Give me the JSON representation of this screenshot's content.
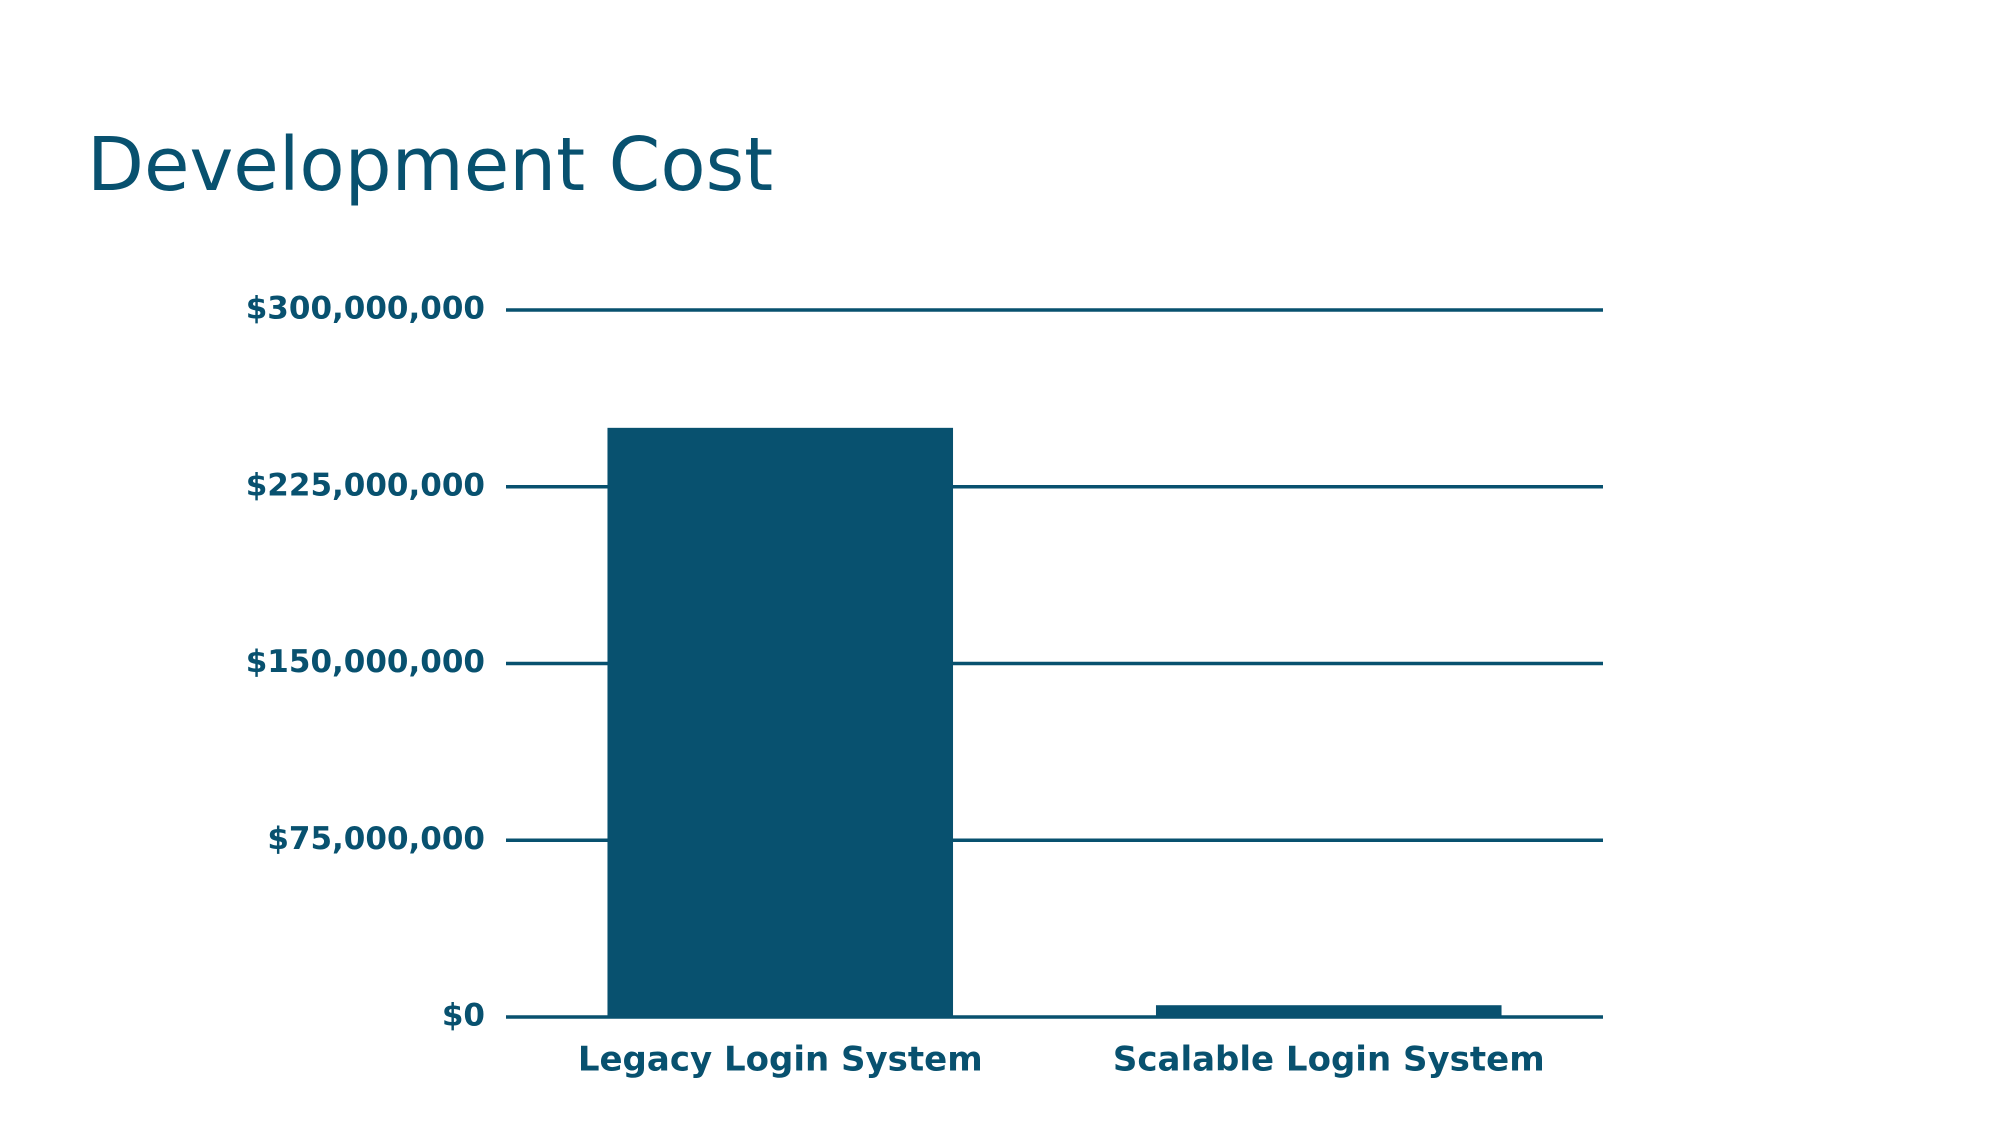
{
  "chart_data": {
    "type": "bar",
    "title": "Development Cost",
    "categories": [
      "Legacy Login System",
      "Scalable Login System"
    ],
    "values": [
      250000000,
      5000000
    ],
    "color": "#08516f",
    "ylim": [
      0,
      300000000
    ],
    "yticks": [
      {
        "value": 0,
        "label": "$0"
      },
      {
        "value": 75000000,
        "label": "$75,000,000"
      },
      {
        "value": 150000000,
        "label": "$150,000,000"
      },
      {
        "value": 225000000,
        "label": "$225,000,000"
      },
      {
        "value": 300000000,
        "label": "$300,000,000"
      }
    ],
    "grid": true
  }
}
